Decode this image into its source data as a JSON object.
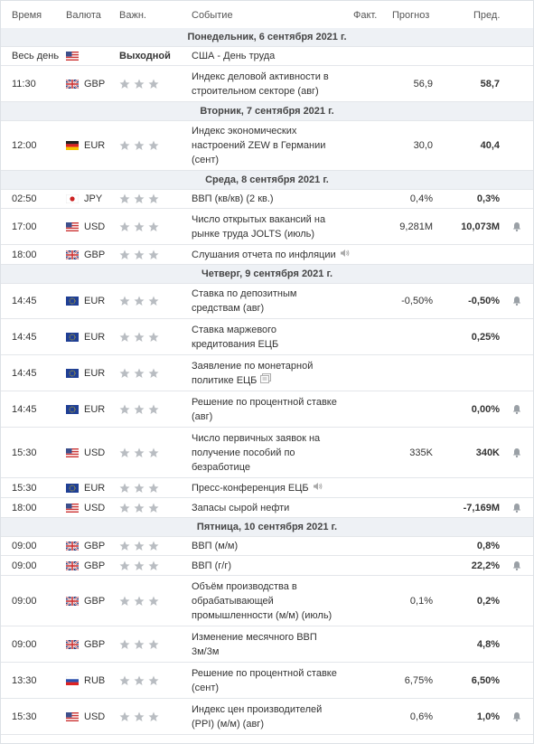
{
  "calendar": {
    "headers": [
      "Время",
      "Валюта",
      "Важн.",
      "Событие",
      "Факт.",
      "Прогноз",
      "Пред."
    ],
    "rows": [
      {
        "day": "Понедельник, 6 сентября 2021 г."
      },
      {
        "time": "Весь день",
        "flag": "USD",
        "importance": "Выходной",
        "event": [
          "США - День труда"
        ]
      },
      {
        "time": "11:30",
        "currency": "GBP",
        "event": [
          "Индекс деловой активности в",
          "строительном секторе (авг)"
        ],
        "forecast": "56,9",
        "previous": "58,7"
      },
      {
        "day": "Вторник, 7 сентября 2021 г."
      },
      {
        "time": "12:00",
        "currency": "EUR",
        "flag": "DE",
        "event": [
          "Индекс экономических",
          "настроений ZEW в Германии",
          "(сент)"
        ],
        "forecast": "30,0",
        "previous": "40,4"
      },
      {
        "day": "Среда, 8 сентября 2021 г."
      },
      {
        "time": "02:50",
        "currency": "JPY",
        "event": [
          "ВВП (кв/кв) (2 кв.)"
        ],
        "forecast": "0,4%",
        "previous": "0,3%"
      },
      {
        "time": "17:00",
        "currency": "USD",
        "event": [
          "Число открытых вакансий на",
          "рынке труда JOLTS (июль)"
        ],
        "forecast": "9,281M",
        "previous": "10,073M",
        "bell": true
      },
      {
        "time": "18:00",
        "currency": "GBP",
        "event": [
          "Слушания отчета по инфляции"
        ],
        "icon": "speaker"
      },
      {
        "day": "Четверг, 9 сентября 2021 г."
      },
      {
        "time": "14:45",
        "currency": "EUR",
        "event": [
          "Ставка по депозитным",
          "средствам (авг)"
        ],
        "forecast": "-0,50%",
        "previous": "-0,50%",
        "bell": true
      },
      {
        "time": "14:45",
        "currency": "EUR",
        "event": [
          "Ставка маржевого",
          "кредитования ЕЦБ"
        ],
        "previous": "0,25%"
      },
      {
        "time": "14:45",
        "currency": "EUR",
        "event": [
          "Заявление по монетарной",
          "политике ЕЦБ"
        ],
        "icon": "document"
      },
      {
        "time": "14:45",
        "currency": "EUR",
        "event": [
          "Решение по процентной ставке",
          "(авг)"
        ],
        "previous": "0,00%",
        "bell": true
      },
      {
        "time": "15:30",
        "currency": "USD",
        "event": [
          "Число первичных заявок на",
          "получение пособий по",
          "безработице"
        ],
        "forecast": "335K",
        "previous": "340K",
        "bell": true
      },
      {
        "time": "15:30",
        "currency": "EUR",
        "event": [
          "Пресс-конференция ЕЦБ"
        ],
        "icon": "speaker"
      },
      {
        "time": "18:00",
        "currency": "USD",
        "event": [
          "Запасы сырой нефти"
        ],
        "previous": "-7,169M",
        "bell": true
      },
      {
        "day": "Пятница, 10 сентября 2021 г."
      },
      {
        "time": "09:00",
        "currency": "GBP",
        "event": [
          "ВВП (м/м)"
        ],
        "previous": "0,8%"
      },
      {
        "time": "09:00",
        "currency": "GBP",
        "event": [
          "ВВП (г/г)"
        ],
        "previous": "22,2%",
        "bell": true
      },
      {
        "time": "09:00",
        "currency": "GBP",
        "event": [
          "Объём производства в",
          "обрабатывающей",
          "промышленности (м/м) (июль)"
        ],
        "forecast": "0,1%",
        "previous": "0,2%"
      },
      {
        "time": "09:00",
        "currency": "GBP",
        "event": [
          "Изменение месячного ВВП",
          "3м/3м"
        ],
        "previous": "4,8%"
      },
      {
        "time": "13:30",
        "currency": "RUB",
        "event": [
          "Решение по процентной ставке",
          "(сент)"
        ],
        "forecast": "6,75%",
        "previous": "6,50%"
      },
      {
        "time": "15:30",
        "currency": "USD",
        "event": [
          "Индекс цен производителей",
          "(PPI) (м/м) (авг)"
        ],
        "forecast": "0,6%",
        "previous": "1,0%",
        "bell": true
      }
    ]
  }
}
